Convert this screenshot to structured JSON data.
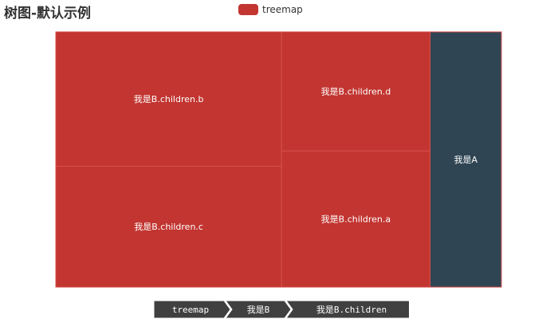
{
  "title": "树图-默认示例",
  "legend": {
    "label": "treemap",
    "color": "#c23531"
  },
  "colors": {
    "primary": "#c23531",
    "secondary": "#2f4554",
    "gap": "#d6504a",
    "breadcrumb": "#404040"
  },
  "chart_data": {
    "type": "treemap",
    "series_name": "treemap",
    "nodes": [
      {
        "name": "我是B",
        "color": "#c23531",
        "children": [
          {
            "name": "我是B.children.b",
            "value": 6
          },
          {
            "name": "我是B.children.c",
            "value": 5.4
          },
          {
            "name": "我是B.children.d",
            "value": 3.5
          },
          {
            "name": "我是B.children.a",
            "value": 4
          }
        ]
      },
      {
        "name": "我是A",
        "value": 3.6,
        "color": "#2f4554"
      }
    ]
  },
  "breadcrumb": [
    {
      "label": "treemap"
    },
    {
      "label": "我是B"
    },
    {
      "label": "我是B.children"
    }
  ]
}
